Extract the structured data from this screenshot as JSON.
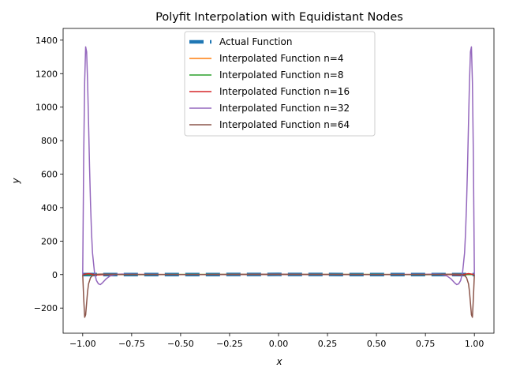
{
  "chart_data": {
    "type": "line",
    "title": "Polyfit Interpolation with Equidistant Nodes",
    "xlabel": "x",
    "ylabel": "y",
    "xlim": [
      -1.1,
      1.1
    ],
    "ylim": [
      -350,
      1470
    ],
    "xticks": [
      -1.0,
      -0.75,
      -0.5,
      -0.25,
      0.0,
      0.25,
      0.5,
      0.75,
      1.0
    ],
    "xtick_labels": [
      "−1.00",
      "−0.75",
      "−0.50",
      "−0.25",
      "0.00",
      "0.25",
      "0.50",
      "0.75",
      "1.00"
    ],
    "yticks": [
      -200,
      0,
      200,
      400,
      600,
      800,
      1000,
      1200,
      1400
    ],
    "ytick_labels": [
      "−200",
      "0",
      "200",
      "400",
      "600",
      "800",
      "1000",
      "1200",
      "1400"
    ],
    "grid": false,
    "legend_position": "top-center",
    "series": [
      {
        "name": "Actual Function",
        "color": "#1f77b4",
        "style": "dashed-thick",
        "x": [
          -1.0,
          -0.8,
          -0.6,
          -0.4,
          -0.2,
          0.0,
          0.2,
          0.4,
          0.6,
          0.8,
          1.0
        ],
        "y": [
          0.04,
          0.06,
          0.1,
          0.2,
          0.5,
          1.0,
          0.5,
          0.2,
          0.1,
          0.06,
          0.04
        ]
      },
      {
        "name": "Interpolated Function n=4",
        "color": "#ff7f0e",
        "style": "solid",
        "x": [
          -1.0,
          -0.5,
          0.0,
          0.5,
          1.0
        ],
        "y": [
          0.04,
          0.4,
          1.0,
          0.4,
          0.04
        ]
      },
      {
        "name": "Interpolated Function n=8",
        "color": "#2ca02c",
        "style": "solid",
        "x": [
          -1.0,
          -0.9,
          -0.75,
          -0.5,
          0.0,
          0.5,
          0.75,
          0.9,
          1.0
        ],
        "y": [
          0.04,
          1.0,
          -0.3,
          0.4,
          1.0,
          0.4,
          -0.3,
          1.0,
          0.04
        ]
      },
      {
        "name": "Interpolated Function n=16",
        "color": "#d62728",
        "style": "solid",
        "x": [
          -1.0,
          -0.97,
          -0.93,
          -0.85,
          -0.5,
          0.0,
          0.5,
          0.85,
          0.93,
          0.97,
          1.0
        ],
        "y": [
          0.04,
          6,
          -2,
          1,
          0.2,
          1.0,
          0.2,
          1,
          -2,
          6,
          0.04
        ]
      },
      {
        "name": "Interpolated Function n=32",
        "color": "#9467bd",
        "style": "solid",
        "x": [
          -1.0,
          -0.995,
          -0.99,
          -0.985,
          -0.98,
          -0.975,
          -0.97,
          -0.965,
          -0.96,
          -0.955,
          -0.95,
          -0.94,
          -0.93,
          -0.92,
          -0.91,
          -0.9,
          -0.88,
          -0.86,
          -0.83,
          -0.8,
          -0.75,
          -0.7,
          -0.5,
          0.0,
          0.5,
          0.7,
          0.75,
          0.8,
          0.83,
          0.86,
          0.88,
          0.9,
          0.91,
          0.92,
          0.93,
          0.94,
          0.95,
          0.955,
          0.96,
          0.965,
          0.97,
          0.975,
          0.98,
          0.985,
          0.99,
          0.995,
          1.0
        ],
        "y": [
          0,
          700,
          1150,
          1360,
          1330,
          1150,
          900,
          640,
          420,
          250,
          130,
          15,
          -35,
          -55,
          -60,
          -50,
          -25,
          -8,
          1,
          3,
          1,
          0.5,
          0.2,
          1.0,
          0.2,
          0.5,
          1,
          3,
          1,
          -8,
          -25,
          -50,
          -60,
          -55,
          -35,
          15,
          130,
          250,
          420,
          640,
          900,
          1150,
          1330,
          1360,
          1150,
          700,
          0
        ]
      },
      {
        "name": "Interpolated Function n=64",
        "color": "#8c564b",
        "style": "solid",
        "x": [
          -1.0,
          -0.995,
          -0.99,
          -0.985,
          -0.98,
          -0.975,
          -0.97,
          -0.96,
          -0.95,
          -0.93,
          -0.9,
          -0.85,
          -0.7,
          -0.5,
          0.0,
          0.5,
          0.7,
          0.85,
          0.9,
          0.93,
          0.95,
          0.96,
          0.97,
          0.975,
          0.98,
          0.985,
          0.99,
          0.995,
          1.0
        ],
        "y": [
          0,
          -140,
          -255,
          -240,
          -170,
          -100,
          -55,
          -18,
          -6,
          2,
          3,
          1,
          0.3,
          0.2,
          1.0,
          0.2,
          0.3,
          1,
          3,
          2,
          -6,
          -18,
          -55,
          -100,
          -170,
          -240,
          -255,
          -140,
          0
        ]
      }
    ]
  }
}
